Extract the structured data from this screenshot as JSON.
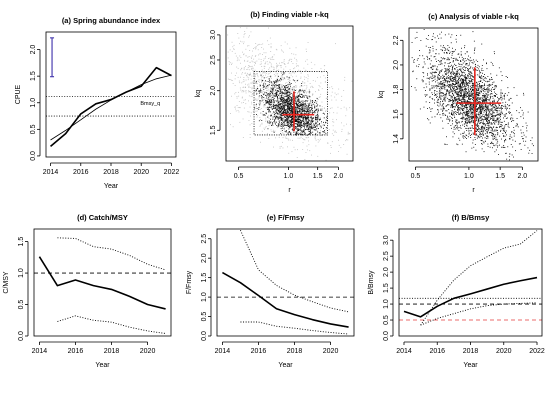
{
  "chart_data": [
    {
      "type": "line",
      "title": "(a) Spring abundance index",
      "xlabel": "Year",
      "ylabel": "CPUE",
      "xlim": [
        2013.7,
        2022.3
      ],
      "ylim": [
        -0.02,
        2.33
      ],
      "xticks": [
        2014,
        2016,
        2018,
        2020,
        2022
      ],
      "yticks": [
        0.0,
        0.5,
        1.0,
        1.5,
        2.0
      ],
      "ytick_labels": [
        "0.0",
        "0.5",
        "1.0",
        "1.5",
        "2.0"
      ],
      "annotation": "Bmsy_q",
      "x": [
        2014,
        2015,
        2016,
        2017,
        2018,
        2019,
        2020,
        2021,
        2022
      ],
      "series": [
        {
          "values": [
            0.18,
            0.42,
            0.79,
            0.98,
            1.06,
            1.2,
            1.31,
            1.66,
            1.51
          ],
          "color": "#000000",
          "style": "solid-thick"
        },
        {
          "values": [
            0.3,
            0.48,
            0.68,
            0.88,
            1.05,
            1.2,
            1.34,
            1.45,
            1.52
          ],
          "color": "#000000",
          "style": "solid-thin"
        }
      ],
      "hlines": [
        {
          "y": 1.12,
          "style": "dotted"
        },
        {
          "y": 0.75,
          "style": "dotted"
        }
      ],
      "error_bar": {
        "x": 2014.1,
        "y_low": 1.49,
        "y_high": 2.22,
        "color": "#4b3fb0"
      }
    },
    {
      "type": "scatter",
      "title": "(b) Finding viable r-kq",
      "xlabel": "r",
      "ylabel": "kq",
      "x_scale": "log",
      "y_scale": "log",
      "xlim": [
        0.42,
        2.45
      ],
      "ylim": [
        1.2,
        3.2
      ],
      "xticks": [
        0.5,
        1.0,
        1.5,
        2.0
      ],
      "xtick_labels": [
        "0.5",
        "1.0",
        "1.5",
        "2.0"
      ],
      "yticks": [
        1.5,
        2.0,
        2.5,
        3.0
      ],
      "ytick_labels": [
        "1.5",
        "2.0",
        "2.5",
        "3.0"
      ],
      "points": [
        {
          "r": 0.55,
          "kq": 2.05,
          "group": "all"
        },
        {
          "r": 0.62,
          "kq": 1.95,
          "group": "all"
        },
        {
          "r": 0.72,
          "kq": 2.3,
          "group": "all"
        },
        {
          "r": 0.8,
          "kq": 2.1,
          "group": "all"
        },
        {
          "r": 0.9,
          "kq": 2.4,
          "group": "all"
        },
        {
          "r": 1.0,
          "kq": 2.2,
          "group": "all"
        },
        {
          "r": 1.2,
          "kq": 2.0,
          "group": "all"
        },
        {
          "r": 1.4,
          "kq": 1.95,
          "group": "all"
        },
        {
          "r": 0.68,
          "kq": 1.7,
          "group": "all"
        },
        {
          "r": 0.58,
          "kq": 2.25,
          "group": "all"
        },
        {
          "r": 0.75,
          "kq": 1.85,
          "group": "viable"
        },
        {
          "r": 0.85,
          "kq": 1.95,
          "group": "viable"
        },
        {
          "r": 0.95,
          "kq": 1.8,
          "group": "viable"
        },
        {
          "r": 1.05,
          "kq": 1.7,
          "group": "viable"
        },
        {
          "r": 1.1,
          "kq": 1.6,
          "group": "viable"
        },
        {
          "r": 1.2,
          "kq": 1.7,
          "group": "viable"
        },
        {
          "r": 1.3,
          "kq": 1.55,
          "group": "viable"
        },
        {
          "r": 0.9,
          "kq": 1.65,
          "group": "viable"
        },
        {
          "r": 1.0,
          "kq": 1.9,
          "group": "viable"
        },
        {
          "r": 1.4,
          "kq": 1.6,
          "group": "viable"
        },
        {
          "r": 1.15,
          "kq": 1.5,
          "group": "viable"
        },
        {
          "r": 0.8,
          "kq": 1.75,
          "group": "viable"
        }
      ],
      "box": {
        "r": [
          0.62,
          1.72
        ],
        "kq": [
          1.45,
          2.3
        ]
      },
      "best_estimate": {
        "r": 1.08,
        "kq": 1.68,
        "r_range": [
          0.92,
          1.43
        ],
        "kq_range": [
          1.49,
          1.99
        ]
      }
    },
    {
      "type": "scatter",
      "title": "(c) Analysis of viable r-kq",
      "xlabel": "r",
      "ylabel": "kq",
      "x_scale": "log",
      "xlim": [
        0.46,
        2.45
      ],
      "ylim": [
        1.22,
        2.3
      ],
      "xticks": [
        0.5,
        1.0,
        1.5,
        2.0
      ],
      "xtick_labels": [
        "0.5",
        "1.0",
        "1.5",
        "2.0"
      ],
      "yticks": [
        1.4,
        1.6,
        1.8,
        2.0,
        2.2
      ],
      "ytick_labels": [
        "1.4",
        "1.6",
        "1.8",
        "2.0",
        "2.2"
      ],
      "points": [
        {
          "r": 0.6,
          "kq": 2.05
        },
        {
          "r": 0.7,
          "kq": 1.95
        },
        {
          "r": 0.75,
          "kq": 2.1
        },
        {
          "r": 0.85,
          "kq": 1.85
        },
        {
          "r": 0.9,
          "kq": 1.75
        },
        {
          "r": 1.0,
          "kq": 1.7
        },
        {
          "r": 1.1,
          "kq": 1.6
        },
        {
          "r": 1.2,
          "kq": 1.65
        },
        {
          "r": 1.3,
          "kq": 1.55
        },
        {
          "r": 1.5,
          "kq": 1.5
        },
        {
          "r": 1.7,
          "kq": 1.4
        },
        {
          "r": 0.95,
          "kq": 1.9
        },
        {
          "r": 1.05,
          "kq": 1.8
        },
        {
          "r": 0.8,
          "kq": 1.6
        },
        {
          "r": 1.4,
          "kq": 1.75
        }
      ],
      "best_estimate": {
        "r": 1.08,
        "kq": 1.69,
        "r_range": [
          0.85,
          1.52
        ],
        "kq_range": [
          1.43,
          1.98
        ]
      }
    },
    {
      "type": "line",
      "title": "(d) Catch/MSY",
      "xlabel": "Year",
      "ylabel": "C/MSY",
      "xlim": [
        2013.7,
        2021.3
      ],
      "ylim": [
        0,
        1.7
      ],
      "xticks": [
        2014,
        2016,
        2018,
        2020
      ],
      "yticks": [
        0.0,
        0.5,
        1.0,
        1.5
      ],
      "ytick_labels": [
        "0.0",
        "0.5",
        "1.0",
        "1.5"
      ],
      "x": [
        2014,
        2015,
        2016,
        2017,
        2018,
        2019,
        2020,
        2021
      ],
      "series": [
        {
          "values": [
            1.26,
            0.8,
            0.89,
            0.8,
            0.74,
            0.63,
            0.5,
            0.43
          ],
          "color": "#000000",
          "style": "solid-thick"
        },
        {
          "x": [
            2015,
            2016,
            2017,
            2018,
            2019,
            2020,
            2021
          ],
          "values": [
            1.56,
            1.55,
            1.42,
            1.38,
            1.28,
            1.14,
            1.05
          ],
          "color": "#000000",
          "style": "dotted"
        },
        {
          "x": [
            2015,
            2016,
            2017,
            2018,
            2019,
            2020,
            2021
          ],
          "values": [
            0.23,
            0.32,
            0.25,
            0.22,
            0.14,
            0.08,
            0.04
          ],
          "color": "#000000",
          "style": "dotted"
        }
      ],
      "hlines": [
        {
          "y": 1.0,
          "style": "dashed"
        }
      ]
    },
    {
      "type": "line",
      "title": "(e) F/Fmsy",
      "xlabel": "Year",
      "ylabel": "F/Fmsy",
      "xlim": [
        2013.7,
        2021.3
      ],
      "ylim": [
        0,
        2.75
      ],
      "xticks": [
        2014,
        2016,
        2018,
        2020
      ],
      "yticks": [
        0.0,
        0.5,
        1.0,
        1.5,
        2.0,
        2.5
      ],
      "ytick_labels": [
        "0.0",
        "0.5",
        "1.0",
        "1.5",
        "2.0",
        "2.5"
      ],
      "x": [
        2014,
        2015,
        2016,
        2017,
        2018,
        2019,
        2020,
        2021
      ],
      "series": [
        {
          "values": [
            1.63,
            1.37,
            1.04,
            0.7,
            0.55,
            0.42,
            0.31,
            0.23
          ],
          "color": "#000000",
          "style": "solid-thick"
        },
        {
          "x": [
            2015,
            2016,
            2017,
            2018,
            2019,
            2020,
            2021
          ],
          "values": [
            2.72,
            1.7,
            1.3,
            1.05,
            0.88,
            0.72,
            0.62
          ],
          "color": "#000000",
          "style": "dotted"
        },
        {
          "x": [
            2015,
            2016,
            2017,
            2018,
            2019,
            2020,
            2021
          ],
          "values": [
            0.36,
            0.36,
            0.25,
            0.2,
            0.14,
            0.09,
            0.05
          ],
          "color": "#000000",
          "style": "dotted"
        }
      ],
      "hlines": [
        {
          "y": 1.0,
          "style": "dashed"
        }
      ]
    },
    {
      "type": "line",
      "title": "(f) B/Bmsy",
      "xlabel": "Year",
      "ylabel": "B/Bmsy",
      "xlim": [
        2013.7,
        2022.3
      ],
      "ylim": [
        0,
        3.35
      ],
      "xticks": [
        2014,
        2016,
        2018,
        2020,
        2022
      ],
      "yticks": [
        0.0,
        0.5,
        1.0,
        1.5,
        2.0,
        2.5,
        3.0
      ],
      "ytick_labels": [
        "0.0",
        "0.5",
        "1.0",
        "1.5",
        "2.0",
        "2.5",
        "3.0"
      ],
      "x": [
        2014,
        2015,
        2016,
        2017,
        2018,
        2019,
        2020,
        2021,
        2022
      ],
      "series": [
        {
          "values": [
            0.77,
            0.6,
            0.93,
            1.18,
            1.32,
            1.47,
            1.62,
            1.73,
            1.83
          ],
          "color": "#000000",
          "style": "solid-thick"
        },
        {
          "x": [
            2015,
            2016,
            2017,
            2018,
            2019,
            2020,
            2021,
            2022
          ],
          "values": [
            0.34,
            1.12,
            1.75,
            2.2,
            2.48,
            2.75,
            2.88,
            3.3
          ],
          "color": "#000000",
          "style": "dotted"
        },
        {
          "x": [
            2015,
            2016,
            2017,
            2018,
            2019,
            2020,
            2021,
            2022
          ],
          "values": [
            0.34,
            0.55,
            0.7,
            0.85,
            0.95,
            1.0,
            1.02,
            1.04
          ],
          "color": "#000000",
          "style": "dotted"
        }
      ],
      "hlines": [
        {
          "y": 1.18,
          "style": "dotted",
          "color": "#000000"
        },
        {
          "y": 1.0,
          "style": "dashed",
          "color": "#000000"
        },
        {
          "y": 0.5,
          "style": "dashed",
          "color": "#e53b3b"
        }
      ]
    }
  ]
}
